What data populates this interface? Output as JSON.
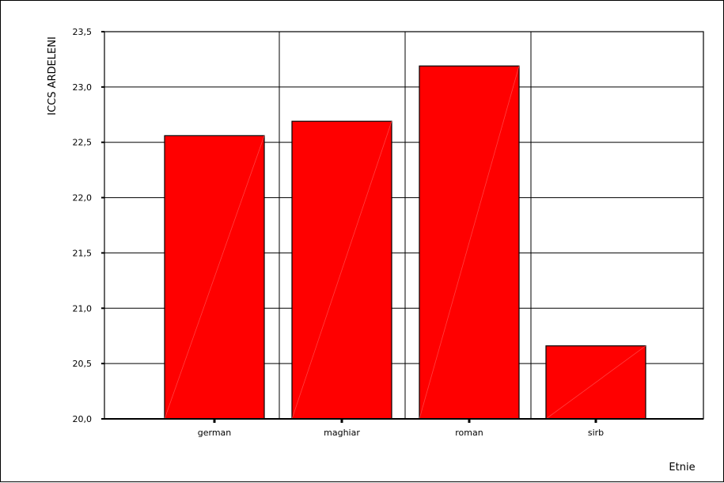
{
  "chart_data": {
    "type": "bar",
    "categories": [
      "german",
      "maghiar",
      "roman",
      "sirb"
    ],
    "values": [
      22.56,
      22.69,
      23.19,
      20.66
    ],
    "title": "",
    "xlabel": "Etnie",
    "ylabel": "ICCS ARDELENI",
    "ylim": [
      20.0,
      23.5
    ],
    "yticks": [
      "20,0",
      "20,5",
      "21,0",
      "21,5",
      "22,0",
      "22,5",
      "23,0",
      "23,5"
    ],
    "grid": "horizontal and vertical category separators",
    "bar_color": "#ff0000",
    "edge_color": "#000000"
  }
}
